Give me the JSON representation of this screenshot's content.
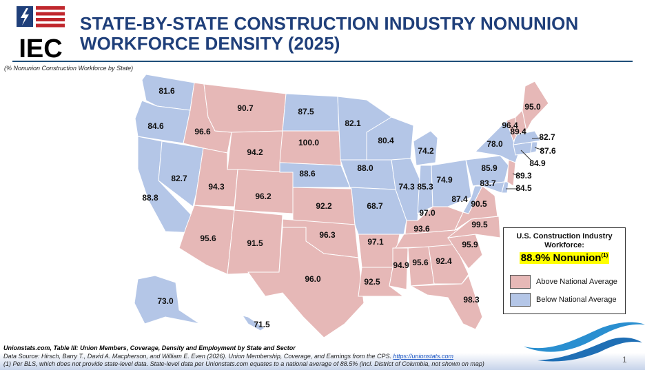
{
  "header": {
    "logo_text": "IEC",
    "title_line1": "STATE-BY-STATE CONSTRUCTION INDUSTRY NONUNION",
    "title_line2": "WORKFORCE DENSITY (2025)",
    "subtitle": "(% Nonunion Construction Workforce by State)"
  },
  "colors": {
    "above": "#e6b8b7",
    "below": "#b4c6e7",
    "title": "#1f3f7a",
    "highlight": "#ffff00"
  },
  "chart_data": {
    "type": "choropleth",
    "title": "State-by-State Construction Industry Nonunion Workforce Density (2025)",
    "unit": "% nonunion",
    "national_average": 88.9,
    "states": [
      {
        "state": "WA",
        "value": 81.6,
        "category": "below"
      },
      {
        "state": "OR",
        "value": 84.6,
        "category": "below"
      },
      {
        "state": "CA",
        "value": 88.8,
        "category": "below"
      },
      {
        "state": "NV",
        "value": 82.7,
        "category": "below"
      },
      {
        "state": "ID",
        "value": 96.6,
        "category": "above"
      },
      {
        "state": "MT",
        "value": 90.7,
        "category": "above"
      },
      {
        "state": "WY",
        "value": 94.2,
        "category": "above"
      },
      {
        "state": "UT",
        "value": 94.3,
        "category": "above"
      },
      {
        "state": "CO",
        "value": 96.2,
        "category": "above"
      },
      {
        "state": "AZ",
        "value": 95.6,
        "category": "above"
      },
      {
        "state": "NM",
        "value": 91.5,
        "category": "above"
      },
      {
        "state": "ND",
        "value": 87.5,
        "category": "below"
      },
      {
        "state": "SD",
        "value": 100.0,
        "category": "above"
      },
      {
        "state": "NE",
        "value": 88.6,
        "category": "below"
      },
      {
        "state": "KS",
        "value": 92.2,
        "category": "above"
      },
      {
        "state": "OK",
        "value": 96.3,
        "category": "above"
      },
      {
        "state": "TX",
        "value": 96.0,
        "category": "above"
      },
      {
        "state": "MN",
        "value": 82.1,
        "category": "below"
      },
      {
        "state": "IA",
        "value": 88.0,
        "category": "below"
      },
      {
        "state": "MO",
        "value": 68.7,
        "category": "below"
      },
      {
        "state": "AR",
        "value": 97.1,
        "category": "above"
      },
      {
        "state": "LA",
        "value": 92.5,
        "category": "above"
      },
      {
        "state": "WI",
        "value": 80.4,
        "category": "below"
      },
      {
        "state": "IL",
        "value": 74.3,
        "category": "below"
      },
      {
        "state": "MI",
        "value": 74.2,
        "category": "below"
      },
      {
        "state": "IN",
        "value": 85.3,
        "category": "below"
      },
      {
        "state": "OH",
        "value": 74.9,
        "category": "below"
      },
      {
        "state": "KY",
        "value": 97.0,
        "category": "above"
      },
      {
        "state": "TN",
        "value": 93.6,
        "category": "above"
      },
      {
        "state": "MS",
        "value": 94.9,
        "category": "above"
      },
      {
        "state": "AL",
        "value": 95.6,
        "category": "above"
      },
      {
        "state": "GA",
        "value": 92.4,
        "category": "above"
      },
      {
        "state": "FL",
        "value": 98.3,
        "category": "above"
      },
      {
        "state": "SC",
        "value": 95.9,
        "category": "above"
      },
      {
        "state": "NC",
        "value": 99.5,
        "category": "above"
      },
      {
        "state": "VA",
        "value": 90.5,
        "category": "above"
      },
      {
        "state": "WV",
        "value": 87.4,
        "category": "below"
      },
      {
        "state": "PA",
        "value": 85.9,
        "category": "below"
      },
      {
        "state": "MD",
        "value": 83.7,
        "category": "below"
      },
      {
        "state": "DE",
        "value": 84.5,
        "category": "below"
      },
      {
        "state": "NJ",
        "value": 89.3,
        "category": "above"
      },
      {
        "state": "NY",
        "value": 78.0,
        "category": "below"
      },
      {
        "state": "CT",
        "value": 84.9,
        "category": "below"
      },
      {
        "state": "RI",
        "value": 87.6,
        "category": "below"
      },
      {
        "state": "MA",
        "value": 82.7,
        "category": "below"
      },
      {
        "state": "VT",
        "value": 96.4,
        "category": "above"
      },
      {
        "state": "NH",
        "value": 89.4,
        "category": "above"
      },
      {
        "state": "ME",
        "value": 95.0,
        "category": "above"
      },
      {
        "state": "AK",
        "value": 73.0,
        "category": "below"
      },
      {
        "state": "HI",
        "value": 71.5,
        "category": "below"
      }
    ]
  },
  "legend": {
    "heading_line1": "U.S. Construction Industry",
    "heading_line2": "Workforce:",
    "headline_value": "88.9% Nonunion",
    "headline_footnote": "(1)",
    "items": [
      {
        "label": "Above National Average",
        "key": "above"
      },
      {
        "label": "Below National Average",
        "key": "below"
      }
    ]
  },
  "footer": {
    "source_title": "Unionstats.com, Table III: Union Members, Coverage, Density and Employment by State and Sector",
    "data_source": "Data Source: Hirsch, Barry T., David A. Macpherson, and William E. Even (2026). Union Membership, Coverage, and Earnings from the CPS.",
    "link_text": "https://unionstats.com",
    "note": "(1) Per BLS, which does not provide state-level data. State-level data per Unionstats.com equates to a national average of 88.5% (incl. District of Columbia, not shown on map)",
    "page_number": "1"
  }
}
